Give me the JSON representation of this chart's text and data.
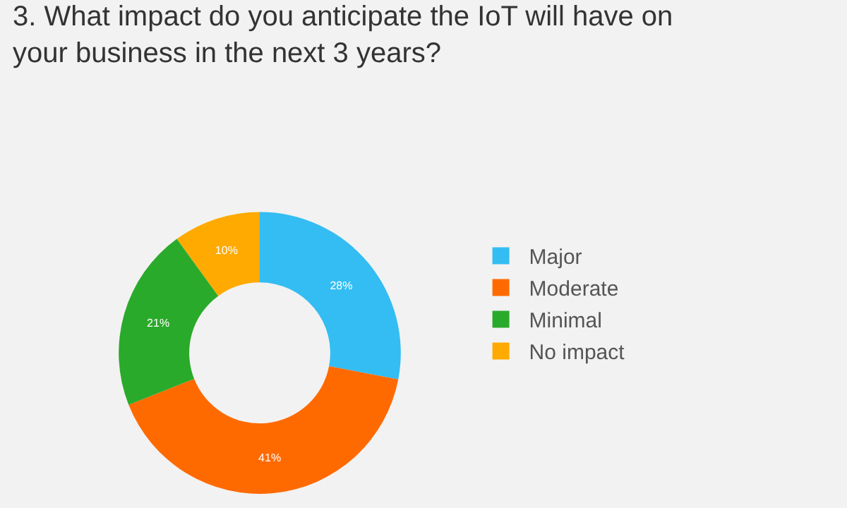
{
  "chart_data": {
    "type": "donut",
    "title": "3. What impact do you anticipate the IoT will have on\nyour business in the next 3 years?",
    "categories": [
      "Major",
      "Moderate",
      "Minimal",
      "No impact"
    ],
    "values": [
      28,
      41,
      21,
      10
    ],
    "value_labels": [
      "28%",
      "41%",
      "21%",
      "10%"
    ],
    "colors": [
      "#33bdf2",
      "#ff6a00",
      "#2aaa2a",
      "#ffaa00"
    ],
    "legend": "right"
  }
}
